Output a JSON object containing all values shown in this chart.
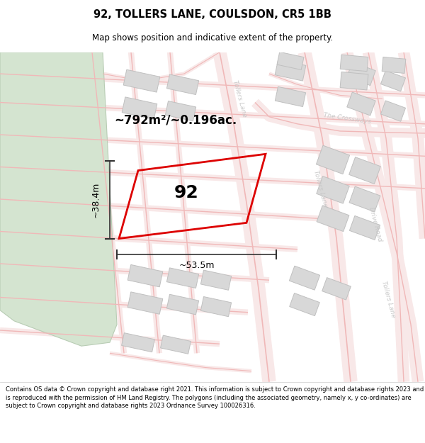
{
  "title": "92, TOLLERS LANE, COULSDON, CR5 1BB",
  "subtitle": "Map shows position and indicative extent of the property.",
  "footer": "Contains OS data © Crown copyright and database right 2021. This information is subject to Crown copyright and database rights 2023 and is reproduced with the permission of HM Land Registry. The polygons (including the associated geometry, namely x, y co-ordinates) are subject to Crown copyright and database rights 2023 Ordnance Survey 100026316.",
  "bg_color": "#ffffff",
  "map_bg": "#ffffff",
  "road_line_color": "#f0b8b8",
  "road_fill_color": "#f8e8e8",
  "building_color": "#d8d8d8",
  "building_edge": "#c0c0c0",
  "green_color": "#d4e4d0",
  "green_edge": "#b8ccb4",
  "plot_color": "#dd0000",
  "area_text": "~792m²/~0.196ac.",
  "width_text": "~53.5m",
  "height_text": "~38.4m",
  "plot_number": "92",
  "street_color": "#c8c8c8",
  "annotation_color": "#333333"
}
